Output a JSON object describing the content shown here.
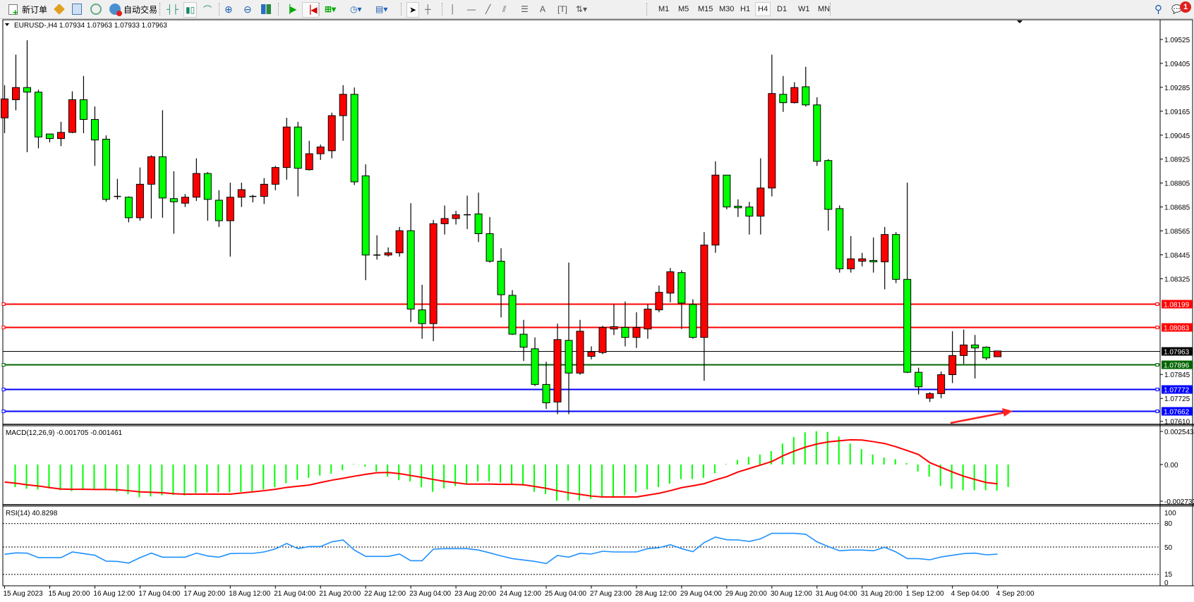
{
  "toolbar": {
    "new_order_label": "新订单",
    "auto_trading_label": "自动交易",
    "timeframes": [
      "M1",
      "M5",
      "M15",
      "M30",
      "H1",
      "H4",
      "D1",
      "W1",
      "MN"
    ],
    "active_timeframe": "H4",
    "notification_count": "1",
    "icons": [
      "new-order-icon",
      "market-watch-icon",
      "data-window-icon",
      "signals-icon",
      "auto-trading-icon",
      "bar-chart-icon",
      "candlestick-icon",
      "line-chart-icon",
      "zoom-in-icon",
      "zoom-out-icon",
      "tile-windows-icon",
      "auto-scroll-icon",
      "chart-shift-icon",
      "indicators-icon",
      "periods-icon",
      "templates-icon",
      "cursor-icon",
      "crosshair-icon",
      "vertical-line-icon",
      "horizontal-line-icon",
      "trendline-icon",
      "equidistant-channel-icon",
      "fibonacci-icon",
      "text-icon",
      "text-label-icon",
      "arrows-icon",
      "search-icon",
      "notification-icon"
    ]
  },
  "chart": {
    "header": "EURUSD-,H4  1.07934 1.07963 1.07933 1.07963",
    "macd_label": "MACD(12,26,9) -0.001705 -0.001461",
    "rsi_label": "RSI(14) 40.8298",
    "colors": {
      "bull": "#ff0000",
      "bear": "#00ff00",
      "macd_hist": "#00ff00",
      "signal": "#ff0000",
      "rsi": "#1e90ff"
    }
  },
  "chart_data": [
    {
      "type": "candlestick",
      "symbol": "EURUSD-",
      "timeframe": "H4",
      "price_ticks": [
        "1.09525",
        "1.09405",
        "1.09285",
        "1.09165",
        "1.09045",
        "1.08925",
        "1.08805",
        "1.08685",
        "1.08565",
        "1.08445",
        "1.08325",
        "1.07845",
        "1.07725",
        "1.07610"
      ],
      "ylim": [
        1.0761,
        1.096
      ],
      "x_tick_labels": [
        "15 Aug 2023",
        "15 Aug 20:00",
        "16 Aug 12:00",
        "17 Aug 04:00",
        "17 Aug 20:00",
        "18 Aug 12:00",
        "21 Aug 04:00",
        "21 Aug 20:00",
        "22 Aug 12:00",
        "23 Aug 04:00",
        "23 Aug 20:00",
        "24 Aug 12:00",
        "25 Aug 04:00",
        "27 Aug 23:00",
        "28 Aug 12:00",
        "29 Aug 04:00",
        "29 Aug 20:00",
        "30 Aug 12:00",
        "31 Aug 04:00",
        "31 Aug 20:00",
        "1 Sep 12:00",
        "4 Sep 04:00",
        "4 Sep 20:00"
      ],
      "ohlc_fields": [
        "open",
        "high",
        "low",
        "close"
      ],
      "ohlc": [
        [
          1.09132,
          1.09296,
          1.09055,
          1.09227
        ],
        [
          1.09223,
          1.09449,
          1.0917,
          1.09284
        ],
        [
          1.09284,
          1.09521,
          1.0896,
          1.09261
        ],
        [
          1.09261,
          1.09273,
          1.08979,
          1.09036
        ],
        [
          1.09051,
          1.09051,
          1.09009,
          1.09028
        ],
        [
          1.09028,
          1.09112,
          1.0899,
          1.09059
        ],
        [
          1.09059,
          1.09265,
          1.09055,
          1.09223
        ],
        [
          1.09223,
          1.09342,
          1.09055,
          1.09124
        ],
        [
          1.09124,
          1.09189,
          1.08891,
          1.09021
        ],
        [
          1.09025,
          1.09044,
          1.08711,
          1.08723
        ],
        [
          1.08738,
          1.08826,
          1.08723,
          1.08734
        ],
        [
          1.08734,
          1.08738,
          1.08608,
          1.08631
        ],
        [
          1.08631,
          1.08883,
          1.08616,
          1.08799
        ],
        [
          1.08799,
          1.08944,
          1.08627,
          1.08937
        ],
        [
          1.08937,
          1.0917,
          1.08631,
          1.0873
        ],
        [
          1.08727,
          1.08864,
          1.08551,
          1.08711
        ],
        [
          1.08704,
          1.0875,
          1.08685,
          1.08734
        ],
        [
          1.08734,
          1.08929,
          1.08715,
          1.08853
        ],
        [
          1.08853,
          1.0886,
          1.08616,
          1.08723
        ],
        [
          1.08719,
          1.08769,
          1.08585,
          1.08616
        ],
        [
          1.08616,
          1.08807,
          1.08436,
          1.08734
        ],
        [
          1.08734,
          1.08807,
          1.08685,
          1.08772
        ],
        [
          1.08738,
          1.08746,
          1.08708,
          1.08734
        ],
        [
          1.08738,
          1.0883,
          1.087,
          1.08799
        ],
        [
          1.08799,
          1.08891,
          1.08769,
          1.08883
        ],
        [
          1.08883,
          1.09132,
          1.08822,
          1.09086
        ],
        [
          1.09086,
          1.09112,
          1.08738,
          1.08879
        ],
        [
          1.08872,
          1.09017,
          1.08868,
          1.08952
        ],
        [
          1.08952,
          1.08998,
          1.08921,
          1.08986
        ],
        [
          1.08967,
          1.09158,
          1.08929,
          1.09143
        ],
        [
          1.09143,
          1.09296,
          1.09017,
          1.0925
        ],
        [
          1.0925,
          1.09284,
          1.08795,
          1.08811
        ],
        [
          1.08841,
          1.08899,
          1.08318,
          1.08444
        ],
        [
          1.08444,
          1.08543,
          1.08421,
          1.0844
        ],
        [
          1.08444,
          1.08482,
          1.08436,
          1.08455
        ],
        [
          1.08455,
          1.08585,
          1.08436,
          1.08566
        ],
        [
          1.08566,
          1.08704,
          1.08108,
          1.08173
        ],
        [
          1.08169,
          1.08295,
          1.08024,
          1.081
        ],
        [
          1.081,
          1.0862,
          1.08012,
          1.08601
        ],
        [
          1.08601,
          1.08692,
          1.08547,
          1.08627
        ],
        [
          1.08627,
          1.08666,
          1.08597,
          1.08646
        ],
        [
          1.08646,
          1.08742,
          1.08574,
          1.08645
        ],
        [
          1.0865,
          1.08757,
          1.08509,
          1.08551
        ],
        [
          1.08551,
          1.08635,
          1.08406,
          1.08413
        ],
        [
          1.08413,
          1.08478,
          1.08131,
          1.08245
        ],
        [
          1.08242,
          1.08268,
          1.08043,
          1.08047
        ],
        [
          1.08047,
          1.08119,
          1.07913,
          1.07982
        ],
        [
          1.07974,
          1.08031,
          1.07787,
          1.07795
        ],
        [
          1.07795,
          1.07909,
          1.07672,
          1.07703
        ],
        [
          1.07707,
          1.081,
          1.07646,
          1.0802
        ],
        [
          1.08016,
          1.08406,
          1.07646,
          1.07852
        ],
        [
          1.07852,
          1.08119,
          1.07844,
          1.08062
        ],
        [
          1.07936,
          1.07986,
          1.07921,
          1.07959
        ],
        [
          1.07955,
          1.08089,
          1.07947,
          1.08081
        ],
        [
          1.08073,
          1.08196,
          1.08043,
          1.08085
        ],
        [
          1.08081,
          1.08211,
          1.07986,
          1.08031
        ],
        [
          1.08031,
          1.08157,
          1.07978,
          1.08081
        ],
        [
          1.08073,
          1.08196,
          1.08024,
          1.08173
        ],
        [
          1.08169,
          1.08291,
          1.08157,
          1.08257
        ],
        [
          1.08253,
          1.08379,
          1.08207,
          1.0836
        ],
        [
          1.08356,
          1.08368,
          1.08073,
          1.08203
        ],
        [
          1.08196,
          1.08222,
          1.08024,
          1.08031
        ],
        [
          1.08031,
          1.08559,
          1.07814,
          1.08494
        ],
        [
          1.08494,
          1.08914,
          1.08455,
          1.08845
        ],
        [
          1.08845,
          1.08845,
          1.08673,
          1.08685
        ],
        [
          1.08689,
          1.08723,
          1.08635,
          1.08681
        ],
        [
          1.08685,
          1.08711,
          1.08547,
          1.08639
        ],
        [
          1.08639,
          1.08929,
          1.08547,
          1.0878
        ],
        [
          1.0878,
          1.09449,
          1.08738,
          1.09254
        ],
        [
          1.0925,
          1.09342,
          1.09162,
          1.09208
        ],
        [
          1.09208,
          1.09311,
          1.09204,
          1.09284
        ],
        [
          1.09288,
          1.09388,
          1.09189,
          1.09197
        ],
        [
          1.09197,
          1.09235,
          1.08891,
          1.08914
        ],
        [
          1.08918,
          1.08925,
          1.08566,
          1.08673
        ],
        [
          1.08677,
          1.08693,
          1.08356,
          1.08375
        ],
        [
          1.08375,
          1.08539,
          1.08356,
          1.08425
        ],
        [
          1.08413,
          1.08455,
          1.08387,
          1.08425
        ],
        [
          1.08417,
          1.08532,
          1.08356,
          1.0841
        ],
        [
          1.0841,
          1.08585,
          1.08272,
          1.08547
        ],
        [
          1.08547,
          1.08559,
          1.08303,
          1.08322
        ],
        [
          1.08322,
          1.08807,
          1.07852,
          1.07856
        ],
        [
          1.07856,
          1.07879,
          1.07745,
          1.07783
        ],
        [
          1.07726,
          1.07756,
          1.07707,
          1.07749
        ],
        [
          1.07749,
          1.0786,
          1.07726,
          1.07844
        ],
        [
          1.07844,
          1.08062,
          1.07802,
          1.0794
        ],
        [
          1.0794,
          1.0807,
          1.07898,
          1.07993
        ],
        [
          1.07993,
          1.08043,
          1.07825,
          1.07978
        ],
        [
          1.07982,
          1.07986,
          1.07917,
          1.07928
        ],
        [
          1.07934,
          1.07963,
          1.07933,
          1.07963
        ]
      ],
      "horizontal_lines": [
        {
          "price": "1.08199",
          "color": "#ff0000"
        },
        {
          "price": "1.08083",
          "color": "#ff0000"
        },
        {
          "price": "1.07963",
          "color": "#000000"
        },
        {
          "price": "1.07896",
          "color": "#006400"
        },
        {
          "price": "1.07772",
          "color": "#0000ff"
        },
        {
          "price": "1.07662",
          "color": "#0000ff"
        }
      ],
      "annotations": [
        {
          "type": "arrow",
          "color": "#ff2020",
          "direction": "up-right",
          "points_to": "1.07662"
        }
      ]
    },
    {
      "type": "bar+line",
      "indicator": "MACD(12,26,9)",
      "y_ticks": [
        "0.002543",
        "0.00",
        "-0.002733"
      ],
      "ylim": [
        -0.002733,
        0.002543
      ],
      "main": [
        -0.001717,
        -0.001841,
        -0.001894,
        -0.001805,
        -0.001947,
        -0.002018,
        -0.001894,
        -0.001894,
        -0.001894,
        -0.002071,
        -0.002248,
        -0.002478,
        -0.002425,
        -0.002336,
        -0.002301,
        -0.002336,
        -0.002159,
        -0.002124,
        -0.002106,
        -0.002106,
        -0.002071,
        -0.002018,
        -0.001894,
        -0.001717,
        -0.001416,
        -0.001151,
        -0.001009,
        -0.000832,
        -0.00069,
        -0.000425,
        3.5e-05,
        -0.000159,
        -0.000531,
        -0.00092,
        -0.001186,
        -0.001274,
        -0.001717,
        -0.002071,
        -0.001805,
        -0.001628,
        -0.001451,
        -0.001274,
        -0.001274,
        -0.001363,
        -0.00154,
        -0.00154,
        -0.002071,
        -0.002248,
        -0.002744,
        -0.002744,
        -0.002744,
        -0.002602,
        -0.002513,
        -0.002425,
        -0.002336,
        -0.002106,
        -0.001894,
        -0.001717,
        -0.001451,
        -0.001097,
        -0.001097,
        -0.001009,
        -0.000655,
        3.5e-05,
        0.000354,
        0.000584,
        0.000761,
        0.001027,
        0.001593,
        0.002089,
        0.002443,
        0.00253,
        0.002478,
        0.002124,
        0.001593,
        0.001168,
        0.000761,
        0.000531,
        0.000407,
        0.000106,
        -0.000531,
        -0.00092,
        -0.001628,
        -0.001841,
        -0.001947,
        -0.001947,
        -0.001947,
        -0.001982,
        -0.001705
      ],
      "signal": [
        -0.001328,
        -0.001416,
        -0.00154,
        -0.001628,
        -0.001752,
        -0.001859,
        -0.001876,
        -0.001876,
        -0.001894,
        -0.001894,
        -0.001912,
        -0.001982,
        -0.002071,
        -0.002106,
        -0.002142,
        -0.002213,
        -0.002248,
        -0.002248,
        -0.002248,
        -0.002248,
        -0.002248,
        -0.002159,
        -0.002071,
        -0.001982,
        -0.001876,
        -0.001735,
        -0.001646,
        -0.001558,
        -0.001363,
        -0.001186,
        -0.001044,
        -0.000885,
        -0.000743,
        -0.00062,
        -0.000602,
        -0.00069,
        -0.000832,
        -0.000974,
        -0.001133,
        -0.001274,
        -0.001381,
        -0.001487,
        -0.001487,
        -0.001487,
        -0.001505,
        -0.001505,
        -0.00154,
        -0.001664,
        -0.001805,
        -0.001982,
        -0.002142,
        -0.002266,
        -0.00239,
        -0.00246,
        -0.00246,
        -0.00246,
        -0.00246,
        -0.002319,
        -0.002177,
        -0.001982,
        -0.001752,
        -0.001611,
        -0.001451,
        -0.001168,
        -0.00092,
        -0.000566,
        -0.000301,
        -3.5e-05,
        0.00023,
        0.000673,
        0.001027,
        0.001328,
        0.001558,
        0.001717,
        0.001805,
        0.001876,
        0.001859,
        0.001735,
        0.001593,
        0.001345,
        0.001062,
        0.000761,
        0.000142,
        -0.000212,
        -0.000566,
        -0.000885,
        -0.001133,
        -0.001363,
        -0.001461
      ]
    },
    {
      "type": "line",
      "indicator": "RSI(14)",
      "y_ticks": [
        "100",
        "80",
        "50",
        "15",
        "0"
      ],
      "levels": [
        80,
        50,
        15
      ],
      "ylim": [
        0,
        100
      ],
      "values": [
        40.7,
        42.5,
        42.2,
        36.4,
        36.4,
        36.4,
        43.7,
        41.6,
        39.5,
        31.9,
        31.6,
        29.5,
        36.4,
        42.2,
        37.0,
        37.0,
        37.0,
        42.2,
        38.6,
        37.0,
        41.6,
        41.9,
        41.9,
        43.7,
        47.6,
        54.5,
        47.9,
        50.6,
        50.6,
        56.6,
        59.0,
        46.1,
        38.0,
        38.0,
        38.0,
        41.0,
        32.5,
        32.5,
        47.3,
        47.9,
        47.9,
        47.9,
        46.1,
        42.5,
        38.6,
        35.2,
        33.4,
        31.6,
        28.9,
        39.2,
        37.0,
        41.9,
        41.0,
        44.6,
        43.7,
        43.7,
        43.7,
        47.9,
        49.1,
        53.0,
        47.9,
        44.0,
        55.7,
        62.7,
        59.3,
        59.0,
        57.2,
        60.5,
        67.5,
        67.5,
        67.5,
        66.3,
        56.6,
        50.6,
        45.2,
        46.1,
        46.1,
        45.2,
        49.7,
        43.7,
        35.2,
        35.2,
        33.7,
        37.3,
        39.5,
        41.6,
        42.2,
        40.1,
        40.83
      ]
    }
  ]
}
